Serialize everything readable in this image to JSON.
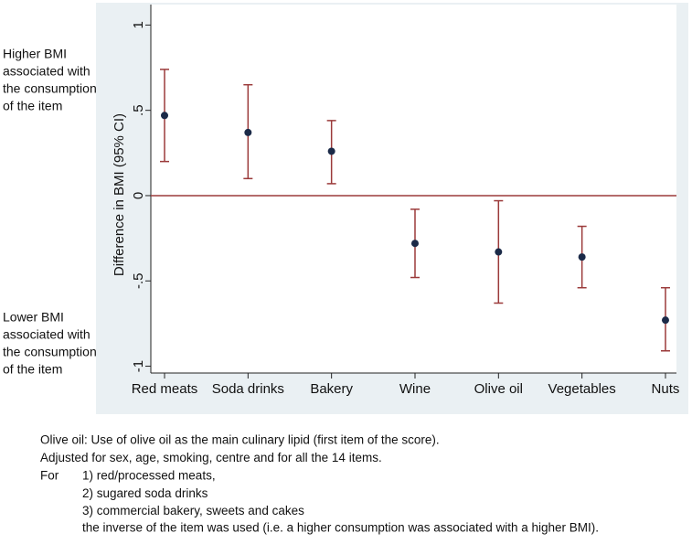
{
  "chart_data": {
    "type": "errorbar",
    "y_axis_label": "Difference in BMI (95% CI)",
    "categories": [
      "Red meats",
      "Soda drinks",
      "Bakery",
      "Wine",
      "Olive oil",
      "Vegetables",
      "Nuts"
    ],
    "values": [
      0.47,
      0.37,
      0.26,
      -0.28,
      -0.33,
      -0.36,
      -0.73
    ],
    "lower": [
      0.2,
      0.1,
      0.07,
      -0.48,
      -0.63,
      -0.54,
      -0.91
    ],
    "upper": [
      0.74,
      0.65,
      0.44,
      -0.08,
      -0.03,
      -0.18,
      -0.54
    ],
    "point_color": "#1b2a48",
    "bar_color": "#9b3a3a",
    "reference_line": 0,
    "reference_color": "#9b3a3a",
    "ylim": [
      -1.04,
      1.12
    ],
    "yticks": [
      1,
      {
        "value": 0.5,
        "label": ".5"
      },
      0,
      {
        "value": -0.5,
        "label": "-.5"
      },
      -1
    ],
    "annotation_top": [
      "Higher BMI",
      "associated with",
      "the consumption",
      "of the item"
    ],
    "annotation_bottom": [
      "Lower BMI",
      "associated with",
      "the consumption",
      "of the item"
    ]
  },
  "notes": [
    "Olive oil: Use of olive oil as the main culinary lipid (first item of the score).",
    "Adjusted for sex, age, smoking, centre and for all the 14 items."
  ],
  "list_intro": "For",
  "list_items": [
    "1) red/processed meats,",
    "2) sugared soda drinks",
    "3) commercial bakery, sweets and cakes"
  ],
  "closing": "the inverse of the item was used (i.e. a higher consumption was associated with a higher BMI)."
}
